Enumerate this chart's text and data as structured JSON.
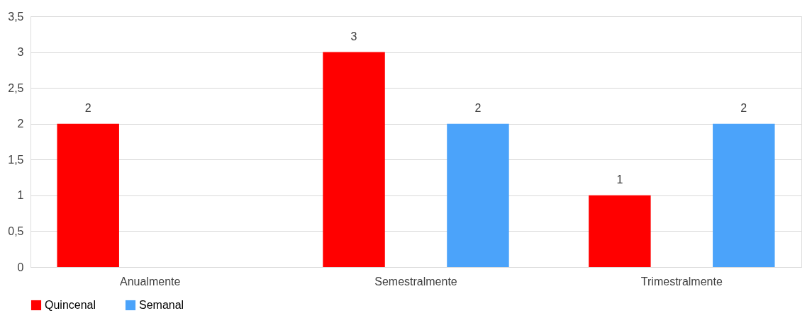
{
  "chart_data": {
    "type": "bar",
    "categories": [
      "Anualmente",
      "Semestralmente",
      "Trimestralmente"
    ],
    "series": [
      {
        "name": "Quincenal",
        "color": "#ff0000",
        "values": [
          2,
          3,
          1
        ]
      },
      {
        "name": "Semanal",
        "color": "#4ba3fa",
        "values": [
          null,
          2,
          2
        ]
      }
    ],
    "ylim": [
      0,
      3.5
    ],
    "yticks": [
      0,
      {
        "value": 0.5,
        "label": "0,5"
      },
      1,
      {
        "value": 1.5,
        "label": "1,5"
      },
      2,
      {
        "value": 2.5,
        "label": "2,5"
      },
      3,
      {
        "value": 3.5,
        "label": "3,5"
      }
    ],
    "grid": "y",
    "legend": "bottom",
    "data_labels": true
  }
}
